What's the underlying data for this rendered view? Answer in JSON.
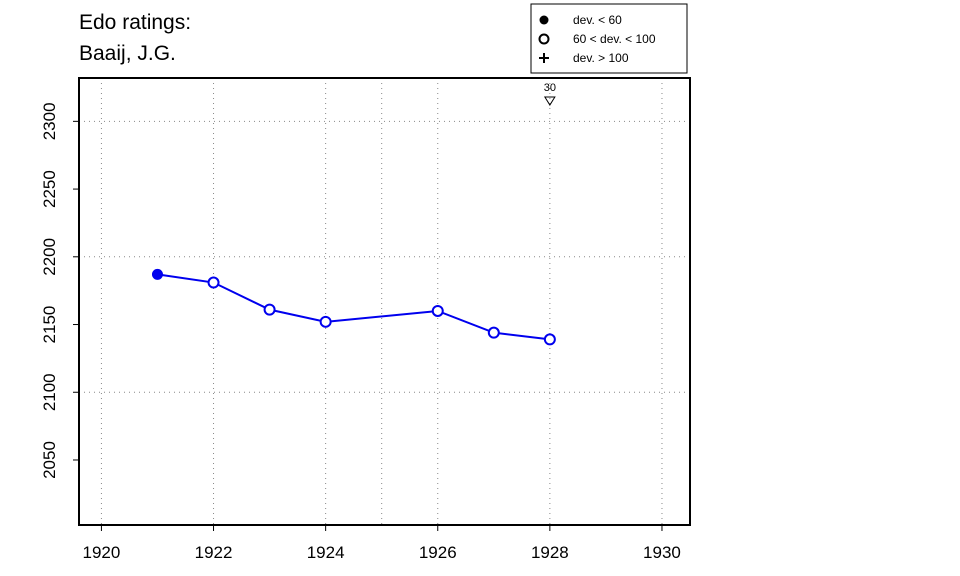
{
  "title": "Edo ratings:",
  "subtitle": "Baaij, J.G.",
  "legend": {
    "placement": "top-right",
    "items": [
      {
        "symbol": "filled-circle",
        "label": "dev. < 60"
      },
      {
        "symbol": "open-circle",
        "label": "60 < dev. < 100"
      },
      {
        "symbol": "plus",
        "label": "dev. > 100"
      }
    ]
  },
  "chart_data": {
    "type": "line",
    "xlabel": "",
    "ylabel": "",
    "xlim": [
      1919.6,
      1930.5
    ],
    "ylim": [
      2002,
      2332
    ],
    "x_ticks": [
      "1920",
      "1922",
      "1924",
      "1926",
      "1928",
      "1930"
    ],
    "y_ticks": [
      "2050",
      "2100",
      "2150",
      "2200",
      "2250",
      "2300"
    ],
    "grid": true,
    "series": [
      {
        "color": "#0000ee",
        "x": [
          1921,
          1922,
          1923,
          1924,
          1926,
          1927,
          1928
        ],
        "y": [
          2187,
          2181,
          2161,
          2152,
          2160,
          2144,
          2139
        ],
        "markers": [
          "filled-circle",
          "open-circle",
          "open-circle",
          "open-circle",
          "open-circle",
          "open-circle",
          "open-circle"
        ]
      }
    ],
    "annotations": [
      {
        "x": 1928,
        "label": "30",
        "marker": "down-triangle"
      }
    ]
  }
}
